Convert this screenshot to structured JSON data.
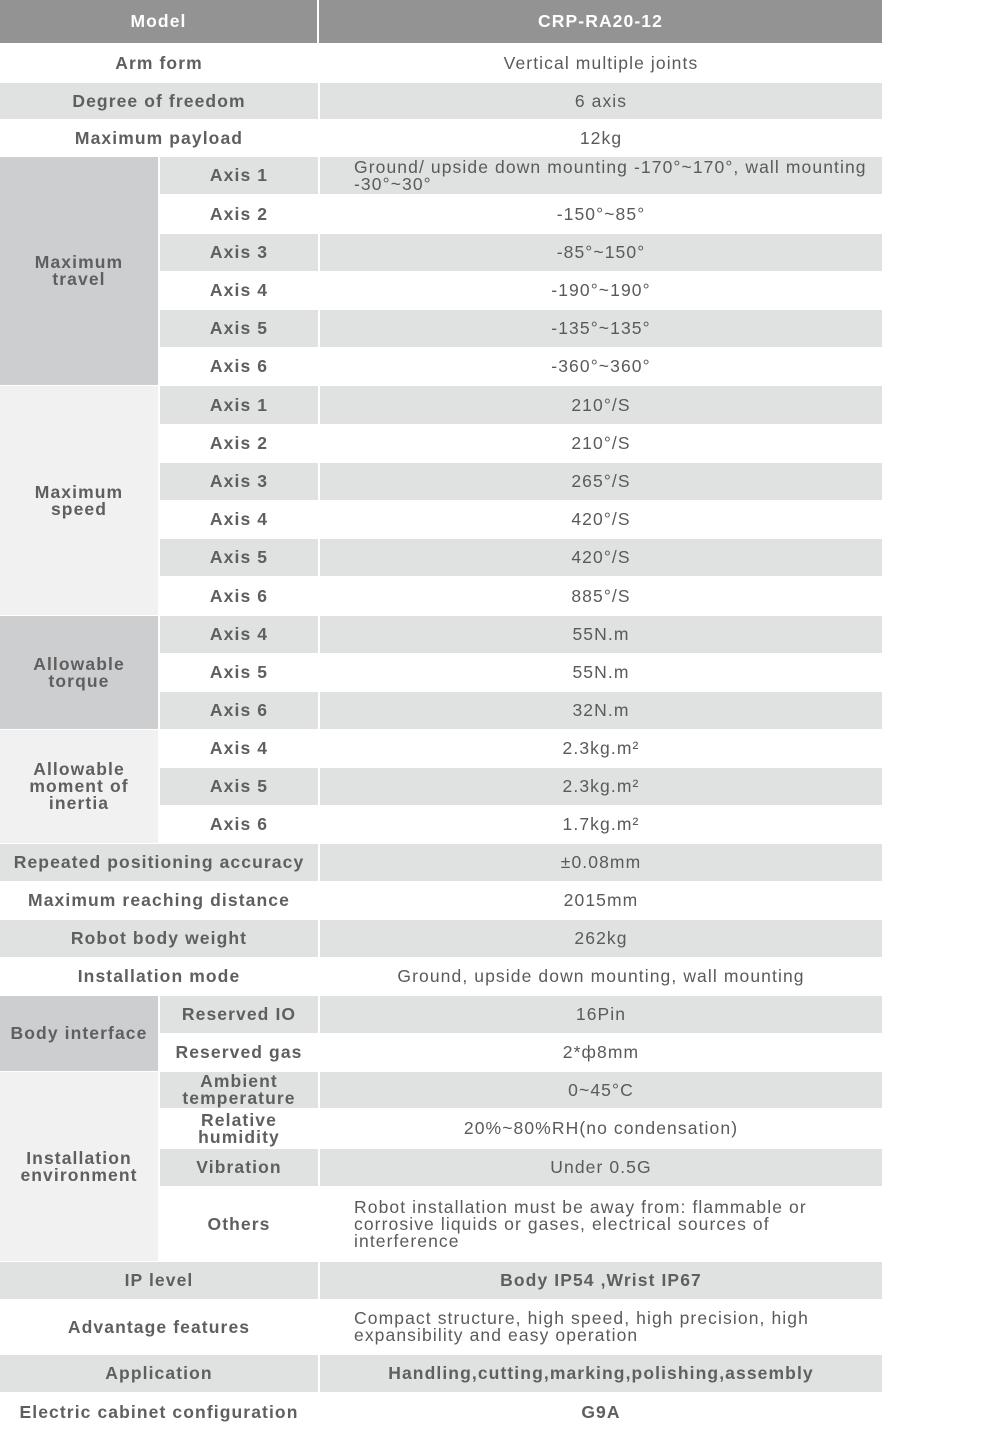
{
  "header": {
    "label": "Model",
    "value": "CRP-RA20-12"
  },
  "colors": {
    "header": "#939393",
    "row_shaded": "#e0e1e1",
    "group_dark": "#cdcecf",
    "group_light": "#f1f1f1",
    "text": "#5a5a5a"
  },
  "rows": [
    {
      "label": "Arm form",
      "value": "Vertical multiple joints"
    },
    {
      "label": "Degree of freedom",
      "value": "6 axis"
    },
    {
      "label": "Maximum payload",
      "value": "12kg"
    },
    {
      "group": "Maximum travel",
      "items": [
        {
          "label": "Axis 1",
          "value": "Ground/ upside down mounting -170°~170°, wall mounting -30°~30°",
          "align": "left"
        },
        {
          "label": "Axis 2",
          "value": "-150°~85°"
        },
        {
          "label": "Axis 3",
          "value": "-85°~150°"
        },
        {
          "label": "Axis 4",
          "value": "-190°~190°"
        },
        {
          "label": "Axis 5",
          "value": "-135°~135°"
        },
        {
          "label": "Axis 6",
          "value": "-360°~360°"
        }
      ]
    },
    {
      "group": "Maximum speed",
      "items": [
        {
          "label": "Axis 1",
          "value": "210°/S"
        },
        {
          "label": "Axis 2",
          "value": "210°/S"
        },
        {
          "label": "Axis 3",
          "value": "265°/S"
        },
        {
          "label": "Axis 4",
          "value": "420°/S"
        },
        {
          "label": "Axis 5",
          "value": "420°/S"
        },
        {
          "label": "Axis 6",
          "value": "885°/S"
        }
      ]
    },
    {
      "group": "Allowable torque",
      "items": [
        {
          "label": "Axis 4",
          "value": "55N.m"
        },
        {
          "label": "Axis 5",
          "value": "55N.m"
        },
        {
          "label": "Axis 6",
          "value": "32N.m"
        }
      ]
    },
    {
      "group": "Allowable moment of inertia",
      "items": [
        {
          "label": "Axis 4",
          "value": "2.3kg.m²"
        },
        {
          "label": "Axis 5",
          "value": "2.3kg.m²"
        },
        {
          "label": "Axis 6",
          "value": "1.7kg.m²"
        }
      ]
    },
    {
      "label": "Repeated positioning accuracy",
      "value": "±0.08mm"
    },
    {
      "label": "Maximum reaching distance",
      "value": "2015mm"
    },
    {
      "label": "Robot body weight",
      "value": "262kg"
    },
    {
      "label": "Installation mode",
      "value": "Ground,  upside down mounting,  wall mounting"
    },
    {
      "group": "Body interface",
      "items": [
        {
          "label": "Reserved IO",
          "value": "16Pin"
        },
        {
          "label": "Reserved gas",
          "value": "2*ф8mm"
        }
      ]
    },
    {
      "group": "Installation environment",
      "items": [
        {
          "label": "Ambient temperature",
          "value": "0~45°C"
        },
        {
          "label": "Relative humidity",
          "value": "20%~80%RH(no condensation)"
        },
        {
          "label": "Vibration",
          "value": "Under 0.5G"
        },
        {
          "label": "Others",
          "value": "Robot installation must be away from: flammable or corrosive liquids or gases, electrical sources of interference",
          "align": "left"
        }
      ]
    },
    {
      "label": "IP level",
      "value": "Body IP54 ,Wrist IP67",
      "bold": true
    },
    {
      "label": "Advantage features",
      "value": "Compact structure, high speed, high precision, high expansibility and easy operation",
      "align": "left"
    },
    {
      "label": "Application",
      "value": "Handling,cutting,marking,polishing,assembly",
      "bold": true
    },
    {
      "label": "Electric cabinet configuration",
      "value": "G9A",
      "bold": true
    }
  ]
}
